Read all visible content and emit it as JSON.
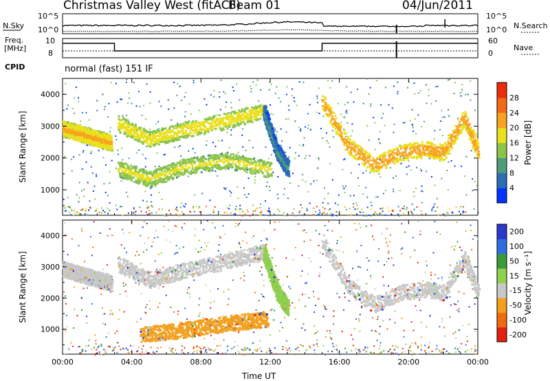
{
  "header": {
    "station": "Christmas Valley West (fitACF)",
    "beam": "Beam 01",
    "date": "04/Jun/2011"
  },
  "strip_panels": {
    "nsky": {
      "label": "N.Sky",
      "right_label": "N.Search",
      "ticks_left": [
        "10^5",
        "10^0"
      ],
      "ticks_right": [
        "10^5",
        "10^0"
      ]
    },
    "freq": {
      "label": "Freq.",
      "unit": "[MHz]",
      "right_label": "Nave",
      "ticks_left": [
        "10",
        "8"
      ],
      "ticks_right": [
        "60",
        "0"
      ]
    },
    "cpid": {
      "label": "CPID",
      "mode_text": "normal (fast) 151 IF"
    }
  },
  "colors": {
    "power_scale": [
      "#0033ff",
      "#2a6db5",
      "#4f9c7a",
      "#8cc44b",
      "#e9e020",
      "#f7a41d",
      "#f26a16",
      "#ee2b0c"
    ],
    "velocity_scale": [
      "#2b38cc",
      "#2f6ee0",
      "#3a9b3a",
      "#8fd14f",
      "#c8c8c8",
      "#f2a01e",
      "#f06a10",
      "#e22010"
    ]
  },
  "chart_data": [
    {
      "type": "heatmap",
      "title": "",
      "ylabel": "Slant Range [km]",
      "xlabel": "",
      "x_ticks": [
        "00:00",
        "04:00",
        "08:00",
        "12:00",
        "16:00",
        "20:00",
        "00:00"
      ],
      "y_ticks": [
        1000,
        2000,
        3000,
        4000
      ],
      "ylim": [
        200,
        4500
      ],
      "colorbar": {
        "label": "Power [dB]",
        "ticks": [
          4,
          8,
          12,
          16,
          20,
          24,
          28
        ],
        "range": [
          0,
          32
        ]
      },
      "features": [
        {
          "t": [
            0.0,
            1.5,
            2.8
          ],
          "range": [
            2950,
            2700,
            2500
          ],
          "level": 24
        },
        {
          "t": [
            3.2,
            5.0,
            7.0,
            9.5,
            11.6
          ],
          "range": [
            3100,
            2600,
            2900,
            3200,
            3500
          ],
          "level": 22
        },
        {
          "t": [
            11.6,
            12.4,
            13.0
          ],
          "range": [
            3500,
            2200,
            1700
          ],
          "level": 12
        },
        {
          "t": [
            3.2,
            5.0,
            7.0,
            9.5,
            12.0
          ],
          "range": [
            1700,
            1350,
            1750,
            1950,
            1650
          ],
          "level": 20
        },
        {
          "t": [
            15.0,
            16.5,
            18.0,
            19.5,
            21.0,
            22.0,
            23.2,
            24.0
          ],
          "range": [
            3800,
            2400,
            1800,
            2200,
            2300,
            2200,
            3300,
            2200
          ],
          "level": 26
        }
      ]
    },
    {
      "type": "heatmap",
      "title": "",
      "ylabel": "Slant Range [km]",
      "xlabel": "Time UT",
      "x_ticks": [
        "00:00",
        "04:00",
        "08:00",
        "12:00",
        "16:00",
        "20:00",
        "00:00"
      ],
      "y_ticks": [
        1000,
        2000,
        3000,
        4000
      ],
      "ylim": [
        200,
        4500
      ],
      "colorbar": {
        "label": "Velocity [m s⁻¹]",
        "ticks": [
          "-200",
          "-100",
          "-50",
          "-15",
          "15",
          "50",
          "100",
          "200"
        ]
      },
      "features": [
        {
          "t": [
            0.0,
            1.5,
            2.8
          ],
          "range": [
            2950,
            2700,
            2500
          ],
          "velocity": 0
        },
        {
          "t": [
            3.2,
            5.0,
            7.0,
            9.5,
            11.6
          ],
          "range": [
            3100,
            2600,
            2900,
            3200,
            3500
          ],
          "velocity": 0
        },
        {
          "t": [
            11.6,
            12.4,
            13.0
          ],
          "range": [
            3500,
            2200,
            1700
          ],
          "velocity": 40
        },
        {
          "t": [
            4.5,
            7.0,
            9.5,
            11.8
          ],
          "range": [
            850,
            1000,
            1200,
            1350
          ],
          "velocity": -70
        },
        {
          "t": [
            15.0,
            16.5,
            18.0,
            19.5,
            21.0,
            22.0,
            23.2,
            24.0
          ],
          "range": [
            3800,
            2400,
            1800,
            2200,
            2300,
            2200,
            3300,
            2200
          ],
          "velocity": 0
        }
      ]
    }
  ]
}
